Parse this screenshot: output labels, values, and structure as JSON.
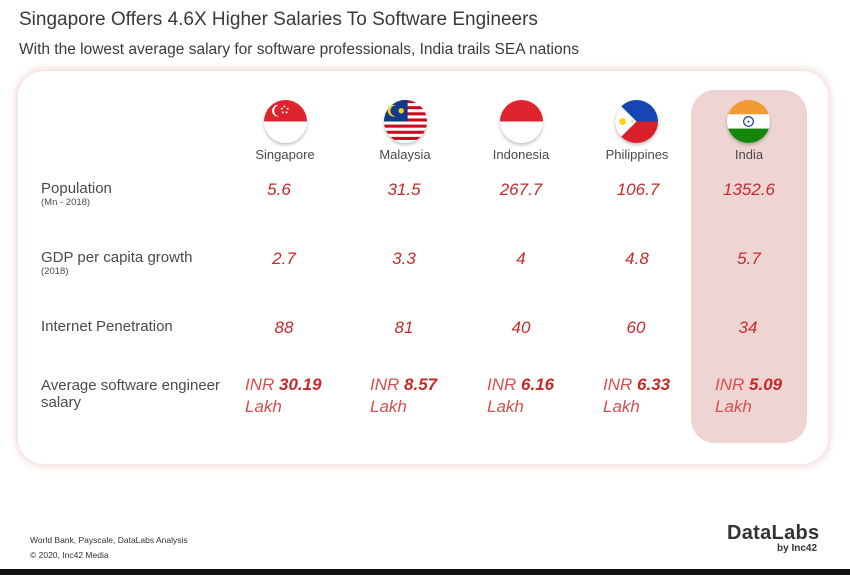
{
  "title": "Singapore Offers 4.6X Higher Salaries To Software Engineers",
  "subtitle": "With the lowest average salary for software professionals, India trails SEA nations",
  "chart_data": {
    "type": "table",
    "highlighted_country": "India",
    "countries": [
      "Singapore",
      "Malaysia",
      "Indonesia",
      "Philippines",
      "India"
    ],
    "rows": [
      {
        "label": "Population",
        "sublabel": "(Mn - 2018)",
        "values": [
          "5.6",
          "31.5",
          "267.7",
          "106.7",
          "1352.6"
        ]
      },
      {
        "label": "GDP per capita growth",
        "sublabel": "(2018)",
        "values": [
          "2.7",
          "3.3",
          "4",
          "4.8",
          "5.7"
        ]
      },
      {
        "label": "Internet Penetration",
        "sublabel": "",
        "values": [
          "88",
          "81",
          "40",
          "60",
          "34"
        ]
      }
    ],
    "salary_row": {
      "label_line1": "Average software engineer",
      "label_line2": "salary",
      "prefix": "INR",
      "unit": "Lakh",
      "values": [
        "30.19",
        "8.57",
        "6.16",
        "6.33",
        "5.09"
      ]
    },
    "flag_icons": [
      "singapore-flag-icon",
      "malaysia-flag-icon",
      "indonesia-flag-icon",
      "philippines-flag-icon",
      "india-flag-icon"
    ]
  },
  "footer": {
    "source": "World Bank, Payscale, DataLabs Analysis",
    "copyright": "© 2020, Inc42 Media"
  },
  "logo": {
    "main": "DataLabs",
    "sub": "by Inc42"
  },
  "colors": {
    "value_red": "#c42b2b",
    "highlight": "#efd4d4",
    "card_glow": "#f0cdcd"
  }
}
